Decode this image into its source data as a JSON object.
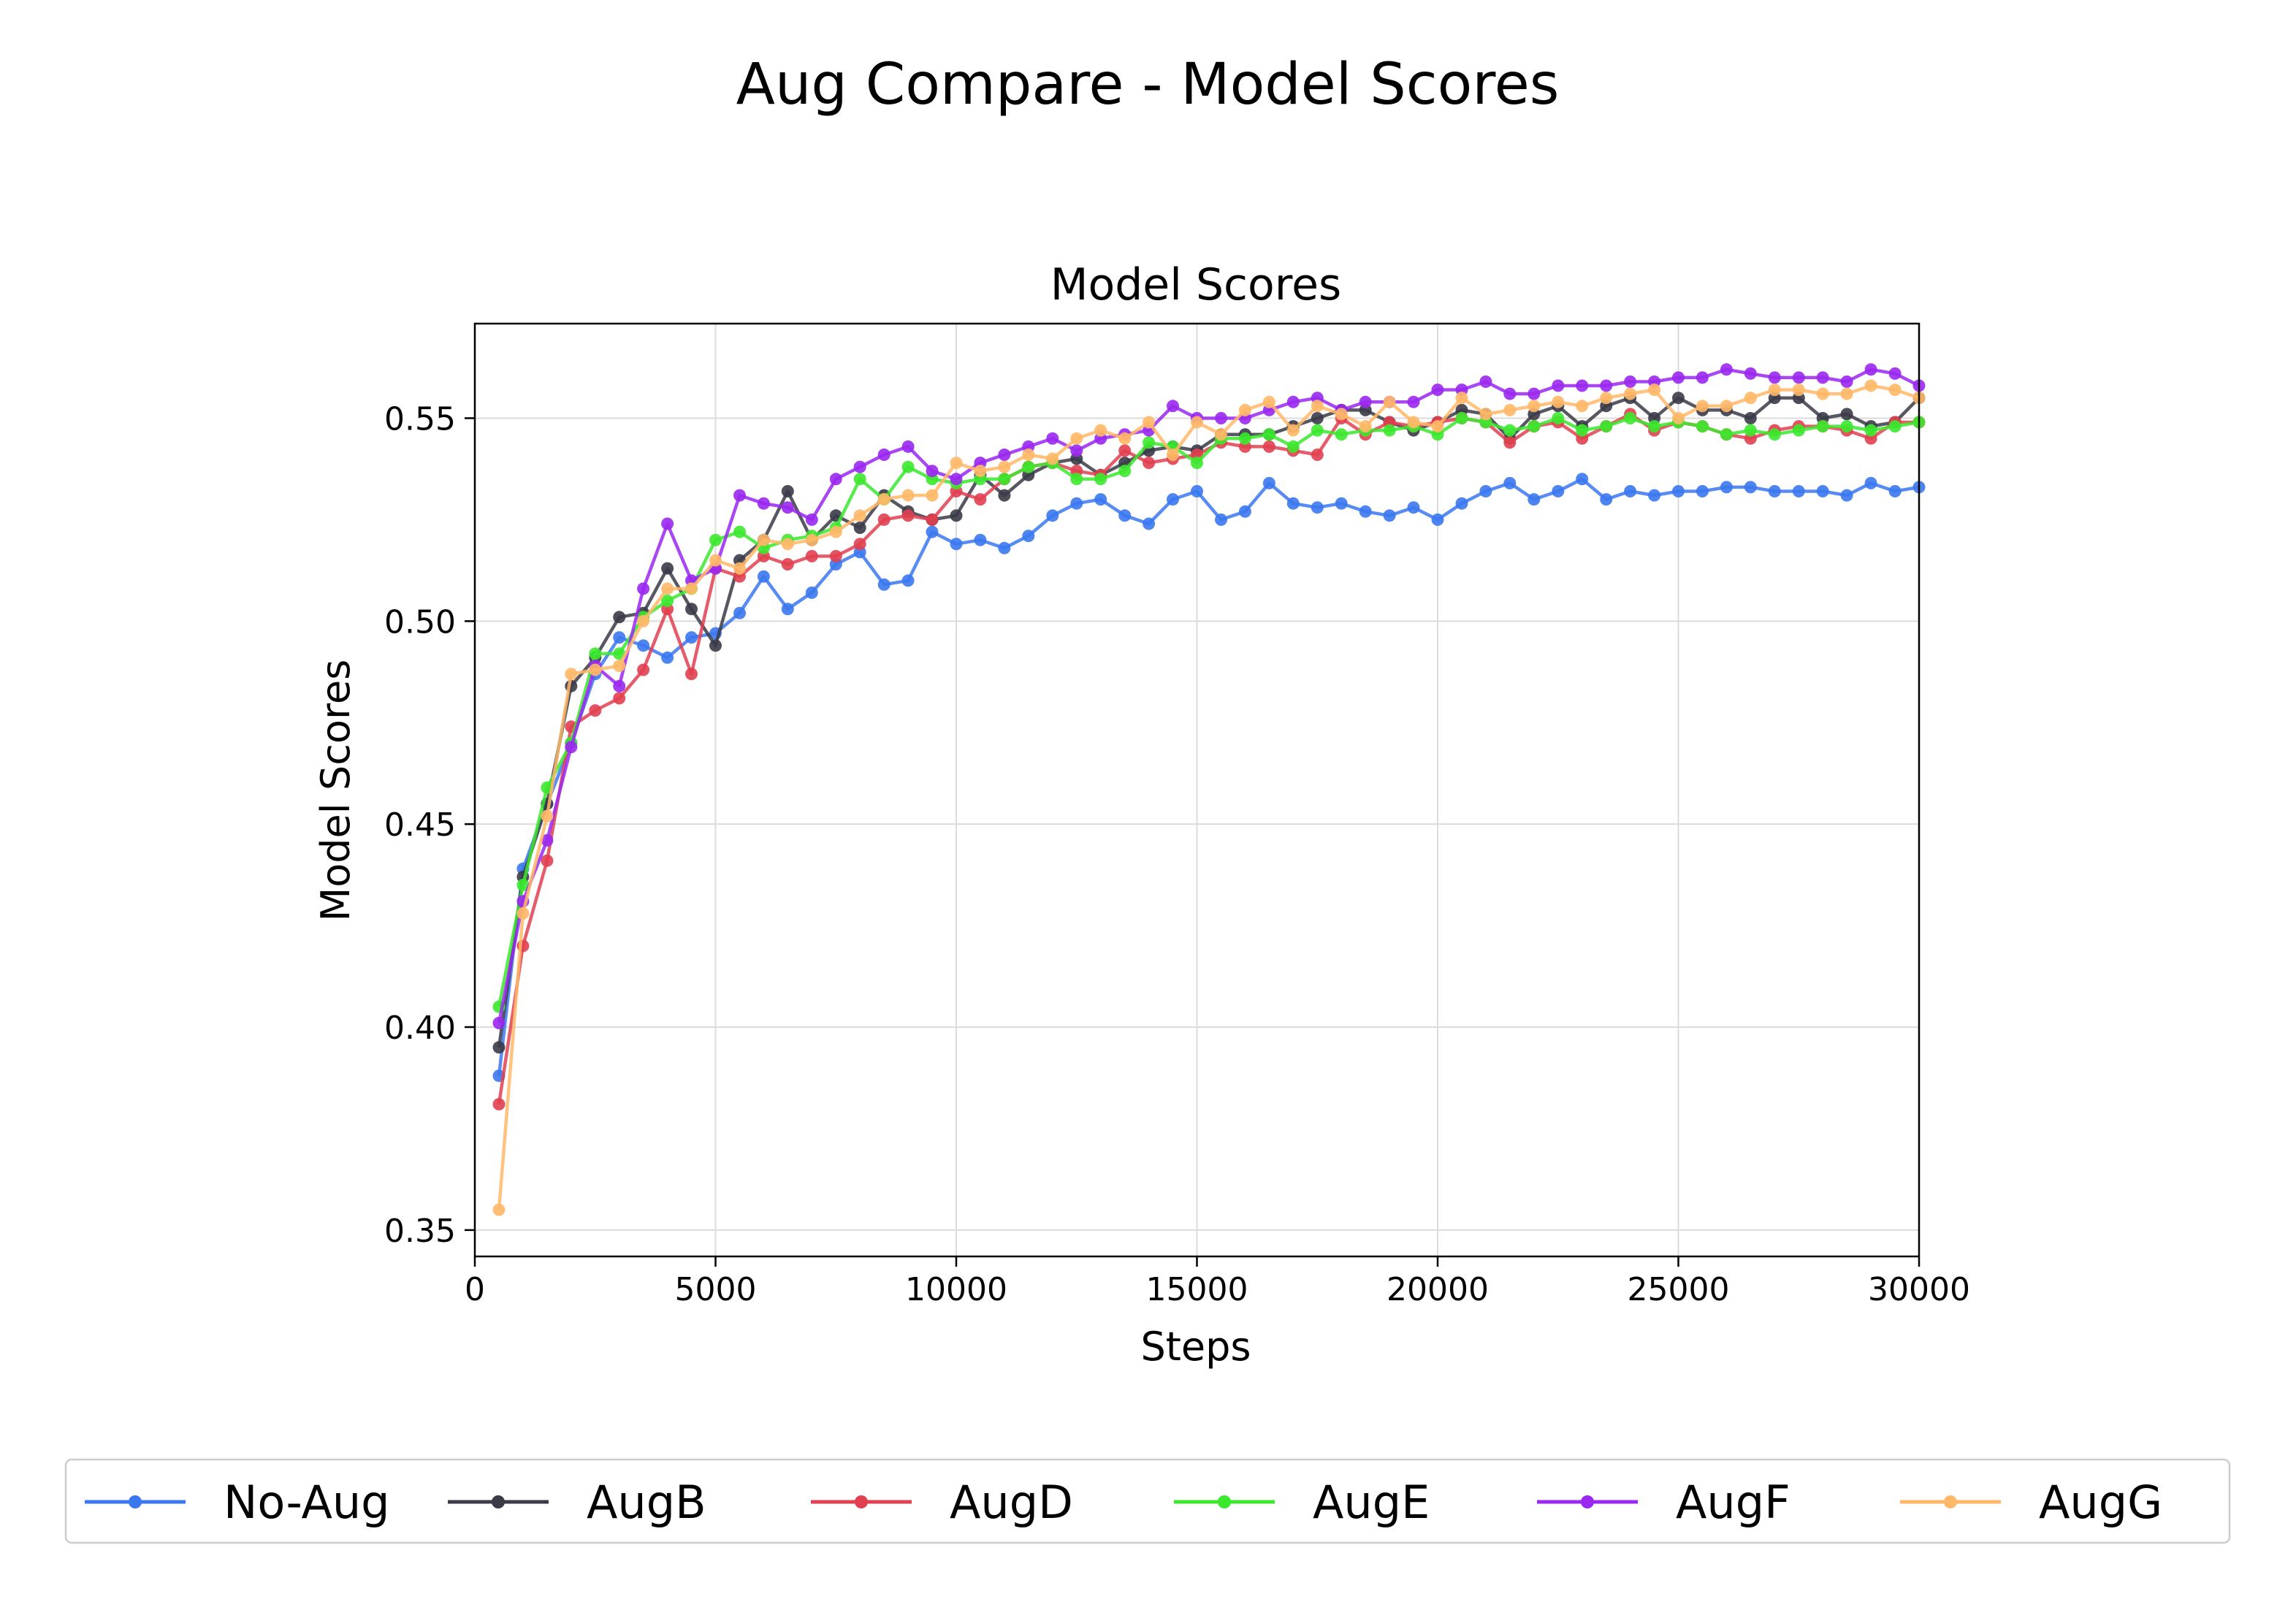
{
  "suptitle": "Aug Compare - Model Scores",
  "chart_data": {
    "type": "line",
    "title": "Model Scores",
    "xlabel": "Steps",
    "ylabel": "Model Scores",
    "xlim": [
      0,
      30000
    ],
    "ylim": [
      0.3435,
      0.5733
    ],
    "xticks": [
      0,
      5000,
      10000,
      15000,
      20000,
      25000,
      30000
    ],
    "yticks": [
      0.35,
      0.4,
      0.45,
      0.5,
      0.55
    ],
    "xtick_labels": [
      "0",
      "5000",
      "10000",
      "15000",
      "20000",
      "25000",
      "30000"
    ],
    "ytick_labels": [
      "0.35",
      "0.40",
      "0.45",
      "0.50",
      "0.55"
    ],
    "grid": true,
    "legend_position": "bottom-center",
    "x": [
      500,
      1000,
      1500,
      2000,
      2500,
      3000,
      3500,
      4000,
      4500,
      5000,
      5500,
      6000,
      6500,
      7000,
      7500,
      8000,
      8500,
      9000,
      9500,
      10000,
      10500,
      11000,
      11500,
      12000,
      12500,
      13000,
      13500,
      14000,
      14500,
      15000,
      15500,
      16000,
      16500,
      17000,
      17500,
      18000,
      18500,
      19000,
      19500,
      20000,
      20500,
      21000,
      21500,
      22000,
      22500,
      23000,
      23500,
      24000,
      24500,
      25000,
      25500,
      26000,
      26500,
      27000,
      27500,
      28000,
      28500,
      29000,
      29500,
      30000
    ],
    "series": [
      {
        "name": "No-Aug",
        "color": "#3b78f0",
        "values": [
          0.388,
          0.439,
          0.455,
          0.47,
          0.487,
          0.496,
          0.494,
          0.491,
          0.496,
          0.497,
          0.502,
          0.511,
          0.503,
          0.507,
          0.514,
          0.517,
          0.509,
          0.51,
          0.522,
          0.519,
          0.52,
          0.518,
          0.521,
          0.526,
          0.529,
          0.53,
          0.526,
          0.524,
          0.53,
          0.532,
          0.525,
          0.527,
          0.534,
          0.529,
          0.528,
          0.529,
          0.527,
          0.526,
          0.528,
          0.525,
          0.529,
          0.532,
          0.534,
          0.53,
          0.532,
          0.535,
          0.53,
          0.532,
          0.531,
          0.532,
          0.532,
          0.533,
          0.533,
          0.532,
          0.532,
          0.532,
          0.531,
          0.534,
          0.532,
          0.533
        ]
      },
      {
        "name": "AugB",
        "color": "#3b3b48",
        "values": [
          0.395,
          0.437,
          0.455,
          0.484,
          0.491,
          0.501,
          0.502,
          0.513,
          0.503,
          0.494,
          0.515,
          0.52,
          0.532,
          0.52,
          0.526,
          0.523,
          0.531,
          0.527,
          0.525,
          0.526,
          0.536,
          0.531,
          0.536,
          0.539,
          0.54,
          0.536,
          0.539,
          0.542,
          0.543,
          0.542,
          0.546,
          0.546,
          0.546,
          0.548,
          0.55,
          0.552,
          0.552,
          0.549,
          0.547,
          0.549,
          0.552,
          0.551,
          0.545,
          0.551,
          0.553,
          0.548,
          0.553,
          0.555,
          0.55,
          0.555,
          0.552,
          0.552,
          0.55,
          0.555,
          0.555,
          0.55,
          0.551,
          0.548,
          0.549,
          0.555
        ]
      },
      {
        "name": "AugD",
        "color": "#e04050",
        "values": [
          0.381,
          0.42,
          0.441,
          0.474,
          0.478,
          0.481,
          0.488,
          0.503,
          0.487,
          0.513,
          0.511,
          0.516,
          0.514,
          0.516,
          0.516,
          0.519,
          0.525,
          0.526,
          0.525,
          0.532,
          0.53,
          0.535,
          0.538,
          0.539,
          0.537,
          0.536,
          0.542,
          0.539,
          0.54,
          0.541,
          0.544,
          0.543,
          0.543,
          0.542,
          0.541,
          0.55,
          0.546,
          0.549,
          0.548,
          0.549,
          0.55,
          0.549,
          0.544,
          0.548,
          0.549,
          0.545,
          0.548,
          0.551,
          0.547,
          0.549,
          0.548,
          0.546,
          0.545,
          0.547,
          0.548,
          0.548,
          0.547,
          0.545,
          0.549,
          0.549
        ]
      },
      {
        "name": "AugE",
        "color": "#3ce82e",
        "values": [
          0.405,
          0.435,
          0.459,
          0.47,
          0.492,
          0.492,
          0.501,
          0.505,
          0.508,
          0.52,
          0.522,
          0.518,
          0.52,
          0.521,
          0.523,
          0.535,
          0.53,
          0.538,
          0.535,
          0.534,
          0.535,
          0.535,
          0.538,
          0.539,
          0.535,
          0.535,
          0.537,
          0.544,
          0.543,
          0.539,
          0.545,
          0.545,
          0.546,
          0.543,
          0.547,
          0.546,
          0.547,
          0.547,
          0.548,
          0.546,
          0.55,
          0.549,
          0.547,
          0.548,
          0.55,
          0.547,
          0.548,
          0.55,
          0.548,
          0.549,
          0.548,
          0.546,
          0.547,
          0.546,
          0.547,
          0.548,
          0.548,
          0.547,
          0.548,
          0.549
        ]
      },
      {
        "name": "AugF",
        "color": "#9a28f0",
        "values": [
          0.401,
          0.431,
          0.446,
          0.469,
          0.489,
          0.484,
          0.508,
          0.524,
          0.51,
          0.513,
          0.531,
          0.529,
          0.528,
          0.525,
          0.535,
          0.538,
          0.541,
          0.543,
          0.537,
          0.535,
          0.539,
          0.541,
          0.543,
          0.545,
          0.542,
          0.545,
          0.546,
          0.547,
          0.553,
          0.55,
          0.55,
          0.55,
          0.552,
          0.554,
          0.555,
          0.552,
          0.554,
          0.554,
          0.554,
          0.557,
          0.557,
          0.559,
          0.556,
          0.556,
          0.558,
          0.558,
          0.558,
          0.559,
          0.559,
          0.56,
          0.56,
          0.562,
          0.561,
          0.56,
          0.56,
          0.56,
          0.559,
          0.562,
          0.561,
          0.558
        ]
      },
      {
        "name": "AugG",
        "color": "#ffb868",
        "values": [
          0.355,
          0.428,
          0.452,
          0.487,
          0.488,
          0.489,
          0.5,
          0.508,
          0.508,
          0.515,
          0.513,
          0.52,
          0.519,
          0.52,
          0.522,
          0.526,
          0.53,
          0.531,
          0.531,
          0.539,
          0.537,
          0.538,
          0.541,
          0.54,
          0.545,
          0.547,
          0.545,
          0.549,
          0.541,
          0.549,
          0.546,
          0.552,
          0.554,
          0.547,
          0.553,
          0.551,
          0.548,
          0.554,
          0.549,
          0.548,
          0.555,
          0.551,
          0.552,
          0.553,
          0.554,
          0.553,
          0.555,
          0.556,
          0.557,
          0.55,
          0.553,
          0.553,
          0.555,
          0.557,
          0.557,
          0.556,
          0.556,
          0.558,
          0.557,
          0.555
        ]
      }
    ]
  }
}
